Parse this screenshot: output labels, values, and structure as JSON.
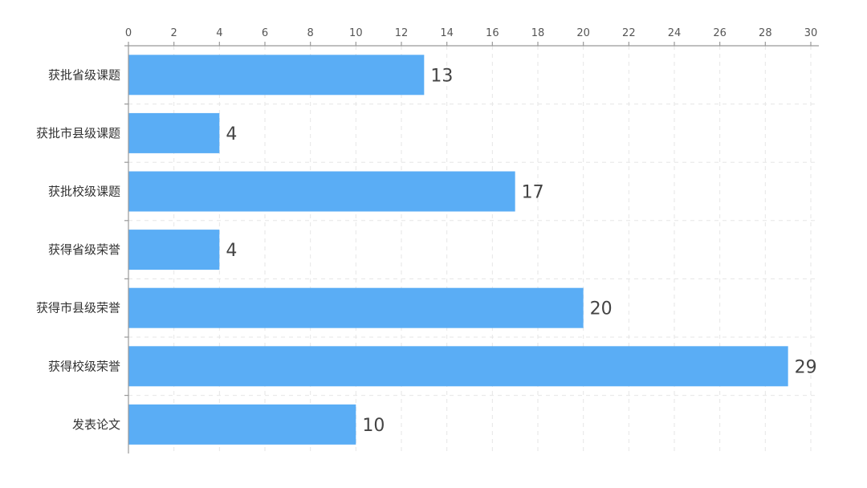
{
  "chart_data": {
    "type": "bar",
    "orientation": "horizontal",
    "x_axis_position": "top",
    "categories": [
      "获批省级课题",
      "获批市县级课题",
      "获批校级课题",
      "获得省级荣誉",
      "获得市县级荣誉",
      "获得校级荣誉",
      "发表论文"
    ],
    "values": [
      13,
      4,
      17,
      4,
      20,
      29,
      10
    ],
    "xlim": [
      0,
      30
    ],
    "xticks": [
      0,
      2,
      4,
      6,
      8,
      10,
      12,
      14,
      16,
      18,
      20,
      22,
      24,
      26,
      28,
      30
    ],
    "grid": true,
    "bar_color": "#5aadf5",
    "data_labels": true,
    "title": "",
    "xlabel": "",
    "ylabel": ""
  }
}
